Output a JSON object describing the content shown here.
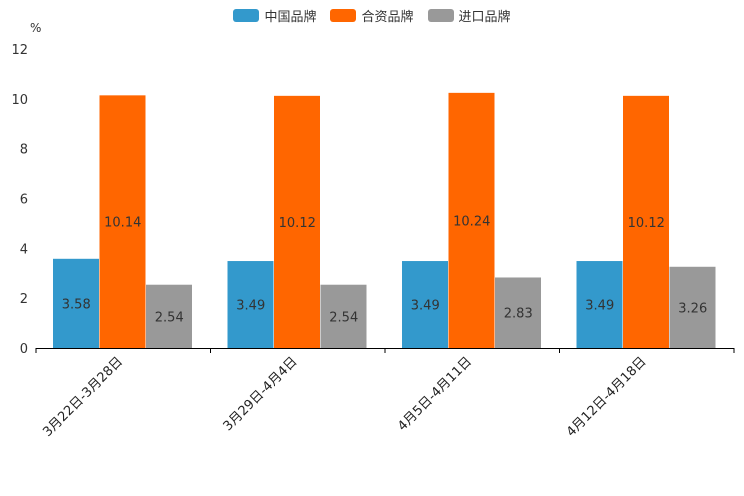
{
  "chart_data": {
    "type": "bar",
    "categories": [
      "3月22日-3月28日",
      "3月29日-4月4日",
      "4月5日-4月11日",
      "4月12日-4月18日"
    ],
    "series": [
      {
        "name": "中国品牌",
        "color": "#3399cc",
        "values": [
          3.58,
          3.49,
          3.49,
          3.49
        ]
      },
      {
        "name": "合资品牌",
        "color": "#ff6600",
        "values": [
          10.14,
          10.12,
          10.24,
          10.12
        ]
      },
      {
        "name": "进口品牌",
        "color": "#999999",
        "values": [
          2.54,
          2.54,
          2.83,
          3.26
        ]
      }
    ],
    "ylim": [
      0,
      12
    ],
    "yticks": [
      0,
      2,
      4,
      6,
      8,
      10,
      12
    ],
    "ylabel": "%",
    "legend_position": "top-center"
  }
}
